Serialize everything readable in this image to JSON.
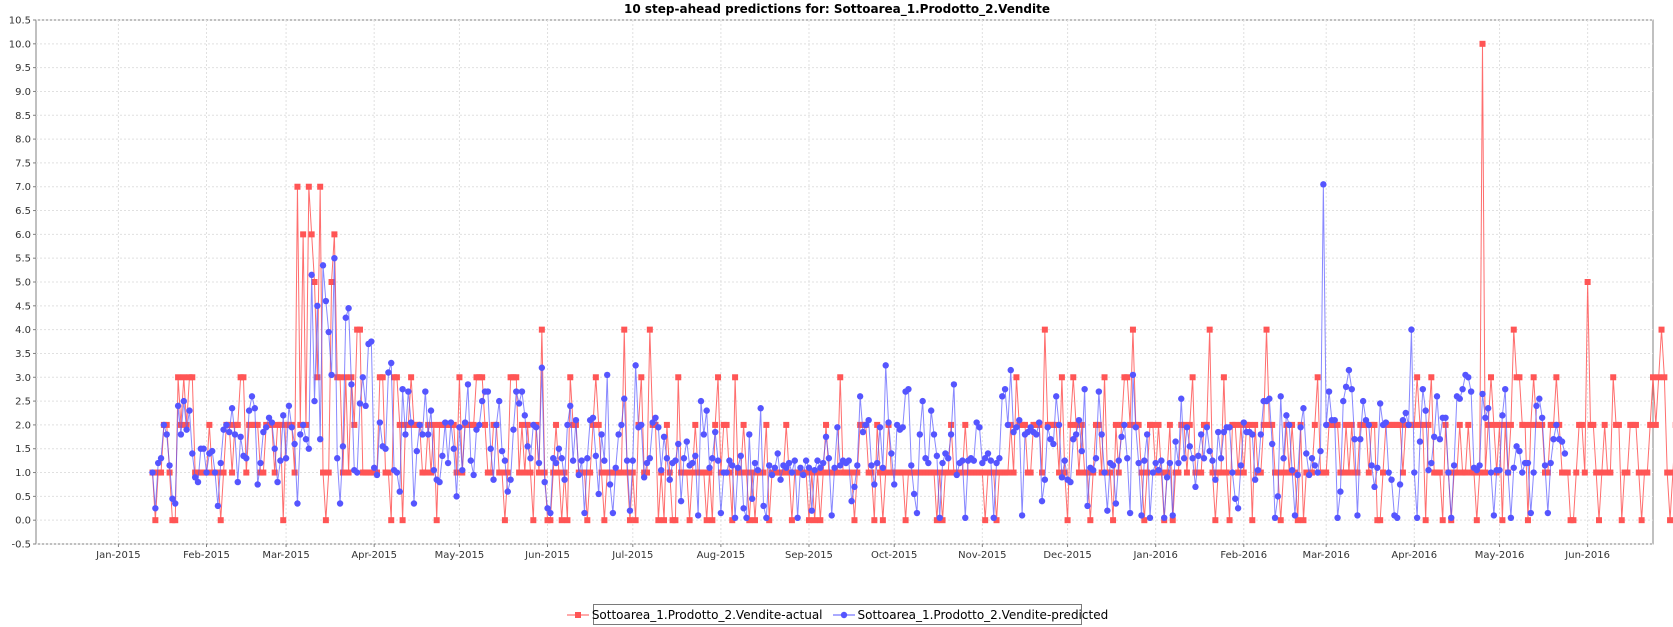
{
  "chart_data": {
    "type": "line",
    "title": "10 step-ahead predictions for: Sottoarea_1.Prodotto_2.Vendite",
    "xlabel": "",
    "ylabel": "",
    "x_tick_labels": [
      "Jan-2015",
      "Feb-2015",
      "Mar-2015",
      "Apr-2015",
      "May-2015",
      "Jun-2015",
      "Jul-2015",
      "Aug-2015",
      "Sep-2015",
      "Oct-2015",
      "Nov-2015",
      "Dec-2015",
      "Jan-2016",
      "Feb-2016",
      "Mar-2016",
      "Apr-2016",
      "May-2016",
      "Jun-2016"
    ],
    "y_tick_labels": [
      "-0.5",
      "0.0",
      "0.5",
      "1.0",
      "1.5",
      "2.0",
      "2.5",
      "3.0",
      "3.5",
      "4.0",
      "4.5",
      "5.0",
      "5.5",
      "6.0",
      "6.5",
      "7.0",
      "7.5",
      "8.0",
      "8.5",
      "9.0",
      "9.5",
      "10.0",
      "10.5"
    ],
    "ylim": [
      -0.5,
      10.5
    ],
    "xlim": [
      "2014-12-03",
      "2016-06-24"
    ],
    "x_start": "2015-01-13",
    "grid": true,
    "legend_position": "bottom",
    "series": [
      {
        "name": "Sottoarea_1.Prodotto_2.Vendite-actual",
        "color": "#ff5555",
        "marker": "square",
        "values": [
          1,
          0,
          1,
          1,
          2,
          2,
          1,
          0,
          0,
          3,
          2,
          3,
          2,
          3,
          3,
          1,
          1,
          1,
          1,
          1,
          2,
          1,
          1,
          1,
          0,
          1,
          2,
          2,
          1,
          2,
          2,
          3,
          3,
          1,
          2,
          2,
          2,
          2,
          1,
          1,
          2,
          2,
          2,
          1,
          2,
          2,
          0,
          2,
          2,
          2,
          1,
          7,
          2,
          6,
          2,
          7,
          6,
          5,
          3,
          7,
          1,
          0,
          1,
          5,
          6,
          3,
          3,
          1,
          3,
          1,
          3,
          2,
          4,
          4,
          1,
          1,
          1,
          1,
          1,
          1,
          3,
          3,
          1,
          1,
          0,
          3,
          3,
          2,
          0,
          2,
          2,
          3,
          2,
          2,
          2,
          1,
          1,
          2,
          1,
          2,
          0,
          2,
          2,
          2,
          2,
          2,
          2,
          1,
          3,
          1,
          2,
          2,
          2,
          2,
          3,
          3,
          3,
          2,
          1,
          1,
          2,
          2,
          1,
          1,
          0,
          1,
          3,
          3,
          3,
          1,
          2,
          1,
          2,
          1,
          0,
          2,
          1,
          4,
          1,
          0,
          0,
          1,
          2,
          1,
          0,
          1,
          0,
          3,
          2,
          2,
          1,
          1,
          1,
          0,
          1,
          2,
          3,
          2,
          1,
          0,
          1,
          1,
          1,
          1,
          1,
          1,
          4,
          1,
          0,
          1,
          0,
          2,
          3,
          1,
          1,
          4,
          2,
          2,
          0,
          1,
          0,
          2,
          1,
          0,
          0,
          3,
          1,
          1,
          1,
          0,
          1,
          2,
          1,
          1,
          1,
          0,
          1,
          0,
          2,
          3,
          1,
          2,
          2,
          1,
          0,
          3,
          1,
          1,
          2,
          1,
          0,
          1,
          0,
          1,
          1,
          1,
          2,
          0,
          1,
          1,
          1,
          1,
          1,
          2,
          1,
          0,
          1,
          1,
          1,
          1,
          1,
          0,
          1,
          0,
          1,
          0,
          1,
          2,
          1,
          1,
          1,
          1,
          3,
          1,
          1,
          1,
          1,
          0,
          1,
          2,
          2,
          2,
          1,
          1,
          0,
          2,
          1,
          0,
          1,
          2,
          1,
          1,
          1,
          1,
          1,
          0,
          1,
          1,
          1,
          1,
          1,
          1,
          1,
          1,
          1,
          1,
          0,
          1,
          0,
          1,
          1,
          2,
          1,
          1,
          1,
          1,
          2,
          1,
          1,
          1,
          1,
          1,
          1,
          0,
          1,
          1,
          1,
          0,
          1,
          1,
          1,
          1,
          2,
          1,
          3,
          2,
          2,
          2,
          1,
          1,
          2,
          2,
          2,
          1,
          4,
          2,
          2,
          2,
          2,
          1,
          3,
          1,
          0,
          2,
          3,
          2,
          1,
          2,
          1,
          1,
          0,
          1,
          2,
          2,
          1,
          3,
          1,
          1,
          0,
          2,
          1,
          2,
          3,
          3,
          2,
          4,
          2,
          2,
          1,
          0,
          1,
          2,
          2,
          1,
          2,
          1,
          0,
          1,
          2,
          0,
          1,
          1,
          2,
          2,
          1,
          2,
          3,
          1,
          1,
          1,
          2,
          2,
          4,
          1,
          0,
          1,
          1,
          3,
          1,
          0,
          2,
          2,
          1,
          2,
          1,
          2,
          2,
          0,
          2,
          1,
          1,
          2,
          4,
          2,
          2,
          1,
          1,
          0,
          1,
          2,
          1,
          2,
          1,
          0,
          2,
          0,
          1,
          1,
          1,
          2,
          3,
          1,
          1,
          1,
          2,
          2,
          2,
          2,
          1,
          1,
          2,
          1,
          2,
          1,
          1,
          2,
          2,
          2,
          1,
          2,
          2,
          0,
          0,
          1,
          2,
          2,
          2,
          2,
          2,
          2,
          1,
          2,
          2,
          2,
          2,
          3,
          2,
          2,
          0,
          2,
          3,
          1,
          1,
          1,
          0,
          2,
          1,
          0,
          1,
          1,
          2,
          1,
          1,
          2,
          1,
          1,
          0,
          1,
          10,
          1,
          2,
          3,
          2,
          1,
          2,
          0,
          2,
          1,
          2,
          4,
          3,
          3,
          2,
          2,
          0,
          2,
          3,
          2,
          2,
          2,
          1,
          1,
          2,
          2,
          3,
          2,
          1,
          1,
          1,
          0,
          0,
          1,
          2,
          2,
          1,
          5,
          2,
          2,
          1,
          0,
          1,
          2,
          1,
          1,
          3,
          2,
          2,
          0,
          1,
          1,
          2,
          2,
          2,
          1,
          0,
          1,
          1,
          2,
          3,
          2,
          3,
          4,
          3,
          1,
          0,
          1,
          2,
          2,
          3,
          2,
          2,
          1,
          0,
          1,
          1,
          1,
          1,
          1,
          2,
          2,
          3,
          1,
          1,
          1,
          1,
          0,
          1,
          1,
          3,
          1,
          1,
          2,
          3,
          1,
          1,
          1,
          0,
          2,
          2,
          1,
          2,
          1,
          3,
          1,
          3,
          1,
          0,
          2,
          1,
          1
        ]
      },
      {
        "name": "Sottoarea_1.Prodotto_2.Vendite-predicted",
        "color": "#5555ff",
        "marker": "circle",
        "values": [
          1.0,
          0.25,
          1.2,
          1.3,
          2.0,
          1.8,
          1.15,
          0.45,
          0.35,
          2.4,
          1.8,
          2.5,
          1.9,
          2.3,
          1.4,
          0.9,
          0.8,
          1.5,
          1.5,
          1.0,
          1.4,
          1.45,
          1.0,
          0.3,
          1.2,
          1.9,
          2.0,
          1.85,
          2.35,
          1.8,
          0.8,
          1.75,
          1.35,
          1.3,
          2.3,
          2.6,
          2.35,
          0.75,
          1.2,
          1.85,
          1.95,
          2.15,
          2.05,
          1.5,
          0.8,
          1.25,
          2.2,
          1.3,
          2.4,
          1.95,
          1.6,
          0.35,
          1.8,
          2.0,
          1.7,
          1.5,
          5.15,
          2.5,
          4.5,
          1.7,
          5.35,
          4.6,
          3.95,
          3.05,
          5.5,
          1.3,
          0.35,
          1.55,
          4.25,
          4.45,
          2.85,
          1.05,
          1.0,
          2.45,
          3.0,
          2.4,
          3.7,
          3.75,
          1.1,
          0.95,
          2.05,
          1.55,
          1.5,
          3.1,
          3.3,
          1.05,
          1.0,
          0.6,
          2.75,
          1.8,
          2.7,
          2.05,
          0.35,
          1.45,
          2.0,
          1.8,
          2.7,
          1.8,
          2.3,
          1.05,
          0.85,
          0.8,
          1.35,
          2.05,
          1.2,
          2.05,
          1.5,
          0.5,
          1.95,
          1.05,
          2.05,
          2.85,
          1.25,
          0.95,
          1.9,
          2.0,
          2.5,
          2.7,
          2.7,
          1.5,
          0.85,
          2.0,
          2.5,
          1.45,
          1.25,
          0.6,
          0.85,
          1.9,
          2.7,
          2.45,
          2.7,
          2.2,
          1.55,
          1.3,
          2.0,
          1.95,
          1.2,
          3.2,
          0.8,
          0.25,
          0.15,
          1.3,
          1.2,
          1.5,
          1.3,
          0.85,
          2.0,
          2.4,
          1.25,
          2.1,
          0.95,
          1.25,
          0.15,
          1.3,
          2.1,
          2.15,
          1.35,
          0.55,
          1.8,
          1.25,
          3.05,
          0.75,
          0.15,
          1.1,
          1.8,
          2.0,
          2.55,
          1.25,
          0.2,
          1.25,
          3.25,
          1.95,
          2.0,
          0.9,
          1.2,
          1.3,
          2.05,
          2.15,
          1.95,
          1.05,
          1.75,
          1.3,
          0.85,
          1.2,
          1.25,
          1.6,
          0.4,
          1.3,
          1.65,
          1.15,
          1.2,
          1.35,
          0.1,
          2.5,
          1.8,
          2.3,
          1.1,
          1.3,
          1.85,
          1.25,
          0.15,
          1.0,
          1.0,
          1.25,
          1.15,
          0.05,
          1.1,
          1.35,
          0.25,
          0.05,
          1.8,
          0.45,
          1.2,
          1.05,
          2.35,
          0.3,
          0.05,
          1.15,
          0.95,
          1.1,
          1.4,
          0.85,
          1.15,
          1.1,
          1.2,
          1.0,
          1.25,
          0.05,
          1.1,
          0.95,
          1.25,
          1.1,
          0.2,
          1.05,
          1.25,
          1.1,
          1.2,
          1.75,
          1.3,
          0.1,
          1.1,
          1.95,
          1.15,
          1.25,
          1.2,
          1.25,
          0.4,
          0.7,
          1.15,
          2.6,
          1.85,
          2.0,
          2.1,
          1.15,
          0.75,
          1.2,
          1.95,
          1.1,
          3.25,
          2.05,
          1.4,
          0.75,
          2.0,
          1.9,
          1.95,
          2.7,
          2.75,
          1.15,
          0.55,
          0.15,
          1.8,
          2.5,
          1.3,
          1.2,
          2.3,
          1.8,
          1.35,
          0.05,
          1.2,
          1.4,
          1.3,
          1.8,
          2.85,
          0.95,
          1.2,
          1.25,
          0.05,
          1.25,
          1.3,
          1.25,
          2.05,
          1.95,
          1.2,
          1.3,
          1.4,
          1.25,
          0.05,
          1.2,
          1.3,
          2.6,
          2.75,
          2.0,
          3.15,
          1.85,
          1.95,
          2.1,
          0.1,
          1.8,
          1.85,
          1.95,
          1.85,
          1.8,
          2.05,
          0.4,
          0.85,
          1.95,
          1.7,
          1.6,
          2.6,
          2.0,
          0.9,
          1.25,
          0.85,
          0.8,
          1.7,
          1.8,
          2.1,
          1.45,
          2.75,
          0.3,
          1.1,
          1.05,
          1.3,
          2.7,
          1.8,
          1.0,
          0.2,
          1.2,
          1.15,
          0.35,
          1.25,
          1.75,
          2.0,
          1.3,
          0.15,
          3.05,
          1.95,
          1.2,
          0.1,
          1.25,
          1.8,
          0.05,
          1.0,
          1.2,
          1.05,
          1.25,
          0.05,
          0.9,
          1.2,
          0.1,
          1.65,
          1.2,
          2.55,
          1.3,
          1.95,
          1.55,
          1.3,
          0.7,
          1.35,
          1.8,
          1.3,
          1.95,
          1.45,
          1.25,
          0.85,
          1.85,
          1.3,
          1.85,
          1.95,
          1.95,
          1.0,
          0.45,
          0.25,
          1.15,
          2.05,
          1.85,
          1.85,
          1.8,
          0.85,
          1.05,
          1.8,
          2.5,
          2.5,
          2.55,
          1.6,
          0.05,
          0.5,
          2.6,
          1.3,
          2.2,
          2.0,
          1.05,
          0.1,
          0.95,
          1.95,
          2.35,
          1.4,
          0.95,
          1.3,
          1.15,
          1.0,
          1.45,
          7.05,
          2.0,
          2.7,
          2.1,
          2.1,
          0.05,
          0.6,
          2.5,
          2.8,
          3.15,
          2.75,
          1.7,
          0.1,
          1.7,
          2.5,
          2.1,
          2.0,
          1.15,
          0.7,
          1.1,
          2.45,
          2.0,
          2.05,
          1.0,
          0.85,
          0.1,
          0.05,
          0.75,
          2.1,
          2.25,
          2.0,
          4.0,
          1.0,
          0.05,
          1.65,
          2.75,
          2.3,
          1.05,
          1.2,
          1.75,
          2.6,
          1.7,
          2.15,
          2.15,
          1.0,
          0.05,
          1.15,
          2.6,
          2.55,
          2.75,
          3.05,
          3.0,
          2.7,
          1.1,
          1.05,
          1.15,
          2.65,
          2.15,
          2.35,
          1.0,
          0.1,
          1.05,
          1.05,
          2.2,
          2.75,
          1.0,
          0.05,
          1.1,
          1.55,
          1.45,
          1.0,
          1.2,
          1.2,
          0.15,
          1.0,
          2.4,
          2.55,
          2.15,
          1.15,
          0.15,
          1.2,
          1.7,
          2.0,
          1.7,
          1.65,
          1.4
        ]
      }
    ]
  }
}
